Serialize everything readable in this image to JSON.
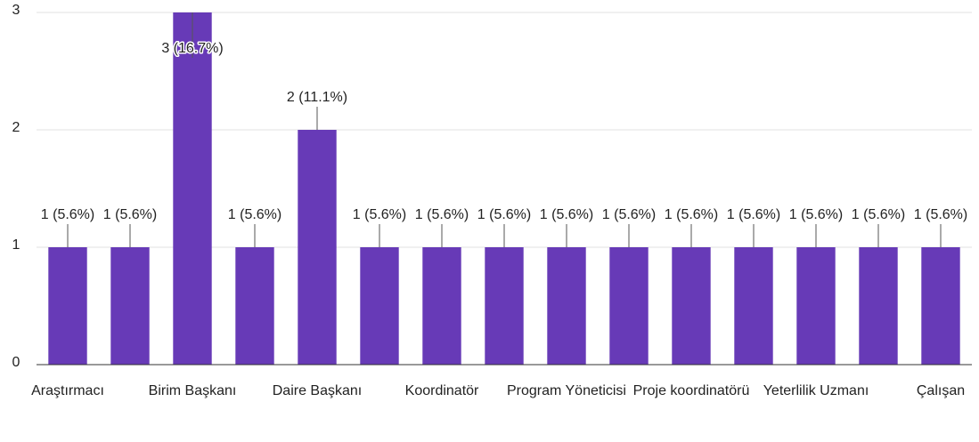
{
  "chart_data": {
    "type": "bar",
    "categories": [
      "Araştırmacı",
      null,
      "Birim Başkanı",
      null,
      "Daire Başkanı",
      null,
      "Koordinatör",
      null,
      "Program Yöneticisi",
      null,
      "Proje koordinatörü",
      null,
      "Yeterlilik Uzmanı",
      null,
      "Çalışan"
    ],
    "values": [
      1,
      1,
      3,
      1,
      2,
      1,
      1,
      1,
      1,
      1,
      1,
      1,
      1,
      1,
      1
    ],
    "value_labels": [
      "1 (5.6%)",
      "1 (5.6%)",
      "3 (16.7%)",
      "1 (5.6%)",
      "2 (11.1%)",
      "1 (5.6%)",
      "1 (5.6%)",
      "1 (5.6%)",
      "1 (5.6%)",
      "1 (5.6%)",
      "1 (5.6%)",
      "1 (5.6%)",
      "1 (5.6%)",
      "1 (5.6%)",
      "1 (5.6%)"
    ],
    "color": "#673ab7",
    "ylim": [
      0,
      3
    ],
    "yticks": [
      0,
      1,
      2,
      3
    ],
    "grid": true
  }
}
